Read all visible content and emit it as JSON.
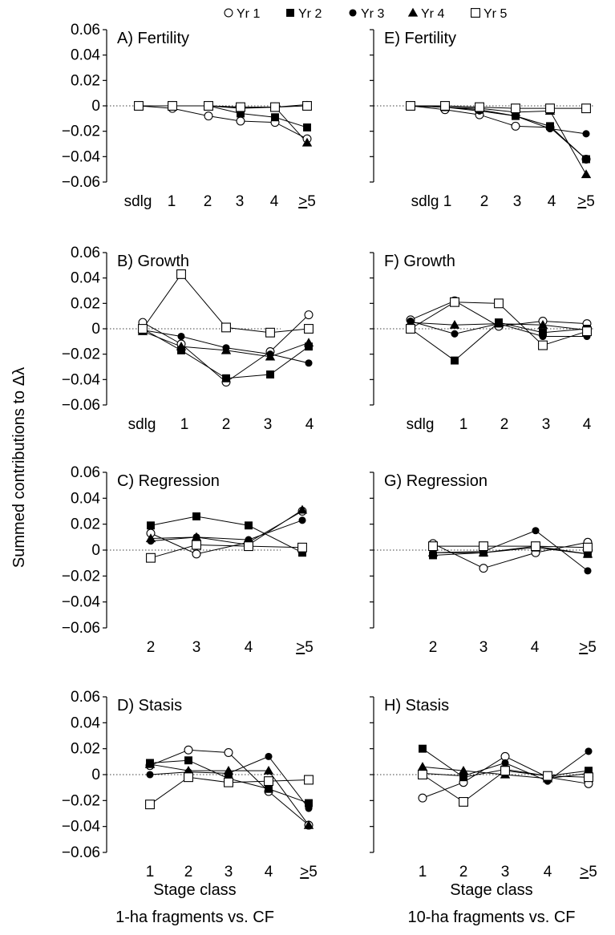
{
  "legend": [
    {
      "name": "Yr 1",
      "marker": "circle-open"
    },
    {
      "name": "Yr 2",
      "marker": "square-filled"
    },
    {
      "name": "Yr 3",
      "marker": "circle-filled"
    },
    {
      "name": "Yr 4",
      "marker": "triangle-filled"
    },
    {
      "name": "Yr 5",
      "marker": "square-open"
    }
  ],
  "y_axis_title": "Summed contributions to Δλ",
  "x_axis_title": "Stage class",
  "column_captions": [
    "1-ha fragments vs. CF",
    "10-ha fragments vs. CF"
  ],
  "y_ticks": [
    "0.06",
    "0.04",
    "0.02",
    "0",
    "−0.02",
    "−0.04",
    "−0.06"
  ],
  "chart_data": [
    {
      "type": "line",
      "title": "A) Fertility",
      "categories": [
        "sdlg",
        "1",
        "2",
        "3",
        "4",
        "≥5"
      ],
      "ylim": [
        -0.06,
        0.06
      ],
      "series": [
        {
          "name": "Yr 1",
          "values": [
            0.0,
            -0.002,
            -0.008,
            -0.012,
            -0.013,
            -0.026
          ]
        },
        {
          "name": "Yr 2",
          "values": [
            0.0,
            0.0,
            0.0,
            -0.006,
            -0.009,
            -0.017
          ]
        },
        {
          "name": "Yr 3",
          "values": [
            0.0,
            0.0,
            0.0,
            -0.002,
            -0.001,
            0.001
          ]
        },
        {
          "name": "Yr 4",
          "values": [
            0.0,
            0.0,
            0.0,
            -0.001,
            -0.001,
            -0.029
          ]
        },
        {
          "name": "Yr 5",
          "values": [
            0.0,
            0.0,
            0.0,
            -0.001,
            -0.001,
            0.0
          ]
        }
      ]
    },
    {
      "type": "line",
      "title": "B) Growth",
      "categories": [
        "sdlg",
        "1",
        "2",
        "3",
        "4"
      ],
      "ylim": [
        -0.06,
        0.06
      ],
      "series": [
        {
          "name": "Yr 1",
          "values": [
            0.005,
            -0.012,
            -0.042,
            -0.018,
            0.011
          ]
        },
        {
          "name": "Yr 2",
          "values": [
            0.0,
            -0.017,
            -0.039,
            -0.036,
            -0.014
          ]
        },
        {
          "name": "Yr 3",
          "values": [
            -0.001,
            -0.006,
            -0.015,
            -0.02,
            -0.027
          ]
        },
        {
          "name": "Yr 4",
          "values": [
            -0.002,
            -0.014,
            -0.017,
            -0.022,
            -0.011
          ]
        },
        {
          "name": "Yr 5",
          "values": [
            0.0,
            0.043,
            0.001,
            -0.003,
            0.0
          ]
        }
      ]
    },
    {
      "type": "line",
      "title": "C) Regression",
      "categories": [
        "2",
        "3",
        "4",
        "≥5"
      ],
      "ylim": [
        -0.06,
        0.06
      ],
      "series": [
        {
          "name": "Yr 1",
          "values": [
            0.013,
            -0.003,
            0.006,
            0.03
          ]
        },
        {
          "name": "Yr 2",
          "values": [
            0.019,
            0.026,
            0.019,
            -0.002
          ]
        },
        {
          "name": "Yr 3",
          "values": [
            0.007,
            0.01,
            0.008,
            0.023
          ]
        },
        {
          "name": "Yr 4",
          "values": [
            0.009,
            0.01,
            0.004,
            0.031
          ]
        },
        {
          "name": "Yr 5",
          "values": [
            -0.006,
            0.004,
            0.003,
            0.002
          ]
        }
      ]
    },
    {
      "type": "line",
      "title": "D) Stasis",
      "categories": [
        "1",
        "2",
        "3",
        "4",
        "≥5"
      ],
      "ylim": [
        -0.06,
        0.06
      ],
      "series": [
        {
          "name": "Yr 1",
          "values": [
            0.007,
            0.019,
            0.017,
            -0.013,
            -0.039
          ]
        },
        {
          "name": "Yr 2",
          "values": [
            0.009,
            0.011,
            -0.003,
            -0.011,
            -0.022
          ]
        },
        {
          "name": "Yr 3",
          "values": [
            0.0,
            0.002,
            0.001,
            0.014,
            -0.026
          ]
        },
        {
          "name": "Yr 4",
          "values": [
            0.008,
            0.003,
            0.003,
            0.003,
            -0.039
          ]
        },
        {
          "name": "Yr 5",
          "values": [
            -0.023,
            -0.002,
            -0.006,
            -0.005,
            -0.004
          ]
        }
      ]
    },
    {
      "type": "line",
      "title": "E) Fertility",
      "categories": [
        "sdlg",
        "1",
        "2",
        "3",
        "4",
        "≥5"
      ],
      "ylim": [
        -0.06,
        0.06
      ],
      "series": [
        {
          "name": "Yr 1",
          "values": [
            0.0,
            -0.003,
            -0.007,
            -0.016,
            -0.017,
            -0.042
          ]
        },
        {
          "name": "Yr 2",
          "values": [
            0.0,
            -0.001,
            -0.003,
            -0.008,
            -0.016,
            -0.042
          ]
        },
        {
          "name": "Yr 3",
          "values": [
            0.0,
            -0.001,
            -0.004,
            -0.008,
            -0.018,
            -0.022
          ]
        },
        {
          "name": "Yr 4",
          "values": [
            0.0,
            -0.001,
            -0.002,
            -0.005,
            -0.004,
            -0.054
          ]
        },
        {
          "name": "Yr 5",
          "values": [
            0.0,
            0.0,
            -0.001,
            -0.002,
            -0.002,
            -0.002
          ]
        }
      ]
    },
    {
      "type": "line",
      "title": "F) Growth",
      "categories": [
        "sdlg",
        "1",
        "2",
        "3",
        "4"
      ],
      "ylim": [
        -0.06,
        0.06
      ],
      "series": [
        {
          "name": "Yr 1",
          "values": [
            0.007,
            0.022,
            0.002,
            0.006,
            0.004
          ]
        },
        {
          "name": "Yr 2",
          "values": [
            0.0,
            -0.025,
            0.005,
            -0.003,
            0.0
          ]
        },
        {
          "name": "Yr 3",
          "values": [
            0.006,
            -0.004,
            0.004,
            -0.006,
            -0.006
          ]
        },
        {
          "name": "Yr 4",
          "values": [
            0.005,
            0.003,
            0.004,
            0.003,
            -0.001
          ]
        },
        {
          "name": "Yr 5",
          "values": [
            0.0,
            0.021,
            0.02,
            -0.013,
            -0.002
          ]
        }
      ]
    },
    {
      "type": "line",
      "title": "G) Regression",
      "categories": [
        "2",
        "3",
        "4",
        "≥5"
      ],
      "ylim": [
        -0.06,
        0.06
      ],
      "series": [
        {
          "name": "Yr 1",
          "values": [
            0.005,
            -0.014,
            -0.002,
            0.006
          ]
        },
        {
          "name": "Yr 2",
          "values": [
            -0.004,
            -0.002,
            0.002,
            -0.003
          ]
        },
        {
          "name": "Yr 3",
          "values": [
            -0.002,
            -0.001,
            0.015,
            -0.016
          ]
        },
        {
          "name": "Yr 4",
          "values": [
            -0.002,
            -0.002,
            0.003,
            -0.003
          ]
        },
        {
          "name": "Yr 5",
          "values": [
            0.003,
            0.003,
            0.003,
            0.002
          ]
        }
      ]
    },
    {
      "type": "line",
      "title": "H) Stasis",
      "categories": [
        "1",
        "2",
        "3",
        "4",
        "≥5"
      ],
      "ylim": [
        -0.06,
        0.06
      ],
      "series": [
        {
          "name": "Yr 1",
          "values": [
            -0.018,
            -0.006,
            0.014,
            -0.002,
            -0.007
          ]
        },
        {
          "name": "Yr 2",
          "values": [
            0.02,
            -0.002,
            0.004,
            -0.001,
            0.003
          ]
        },
        {
          "name": "Yr 3",
          "values": [
            0.001,
            -0.001,
            0.009,
            -0.005,
            0.018
          ]
        },
        {
          "name": "Yr 4",
          "values": [
            0.006,
            0.003,
            0.0,
            -0.003,
            0.001
          ]
        },
        {
          "name": "Yr 5",
          "values": [
            0.0,
            -0.021,
            0.003,
            -0.001,
            -0.002
          ]
        }
      ]
    }
  ]
}
